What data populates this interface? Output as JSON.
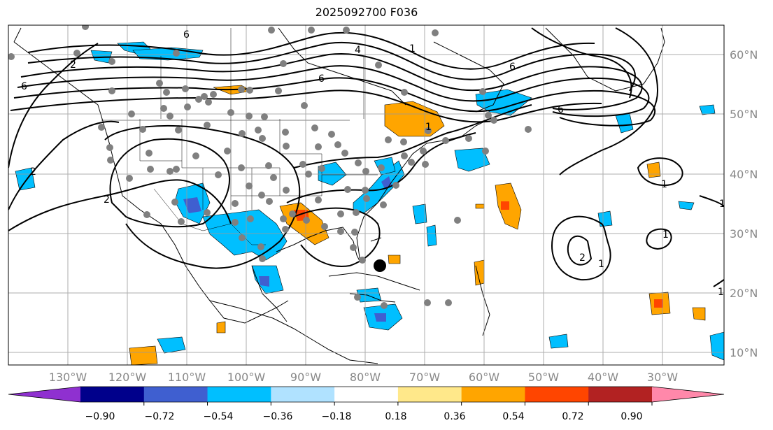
{
  "title": "2025092700 F036",
  "axes": {
    "lat_labels": [
      "60°N",
      "50°N",
      "40°N",
      "30°N",
      "20°N",
      "10°N"
    ],
    "lon_labels": [
      "130°W",
      "120°W",
      "110°W",
      "100°W",
      "90°W",
      "80°W",
      "70°W",
      "60°W",
      "50°W",
      "40°W",
      "30°W"
    ]
  },
  "contour_labels": [
    "6",
    "4",
    "6",
    "6",
    "6",
    "6",
    "1",
    "2",
    "2",
    "2",
    "1",
    "1",
    "1",
    "2",
    "1",
    "1",
    "1"
  ],
  "colorbar": {
    "colors": [
      "#8f30d0",
      "#00008b",
      "#3f5fd0",
      "#00bfff",
      "#b0e2ff",
      "#ffffff",
      "#ffe88a",
      "#ffa500",
      "#ff4500",
      "#b22222",
      "#ff88aa"
    ],
    "tick_labels": [
      "−0.90",
      "−0.72",
      "−0.54",
      "−0.36",
      "−0.18",
      "0.18",
      "0.36",
      "0.54",
      "0.72",
      "0.90"
    ]
  }
}
